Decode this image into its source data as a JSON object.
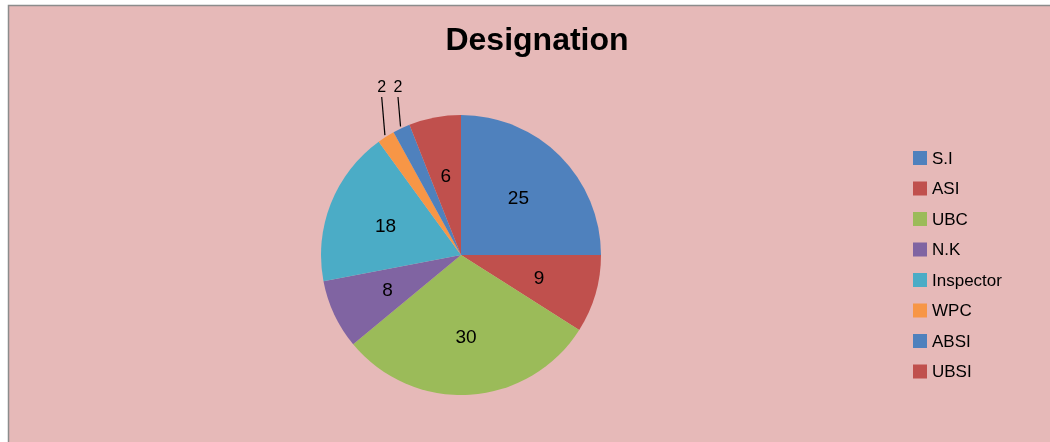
{
  "chart_data": {
    "type": "pie",
    "title": "Designation",
    "categories": [
      "S.I",
      "ASI",
      "UBC",
      "N.K",
      "Inspector",
      "WPC",
      "ABSI",
      "UBSI"
    ],
    "values": [
      25,
      9,
      30,
      8,
      18,
      2,
      2,
      6
    ],
    "colors": [
      "#4f81bd",
      "#c0504d",
      "#9bbb59",
      "#8064a2",
      "#4bacc6",
      "#f79646",
      "#4f81bd",
      "#c0504d"
    ],
    "data_labels": true,
    "legend": "right"
  }
}
